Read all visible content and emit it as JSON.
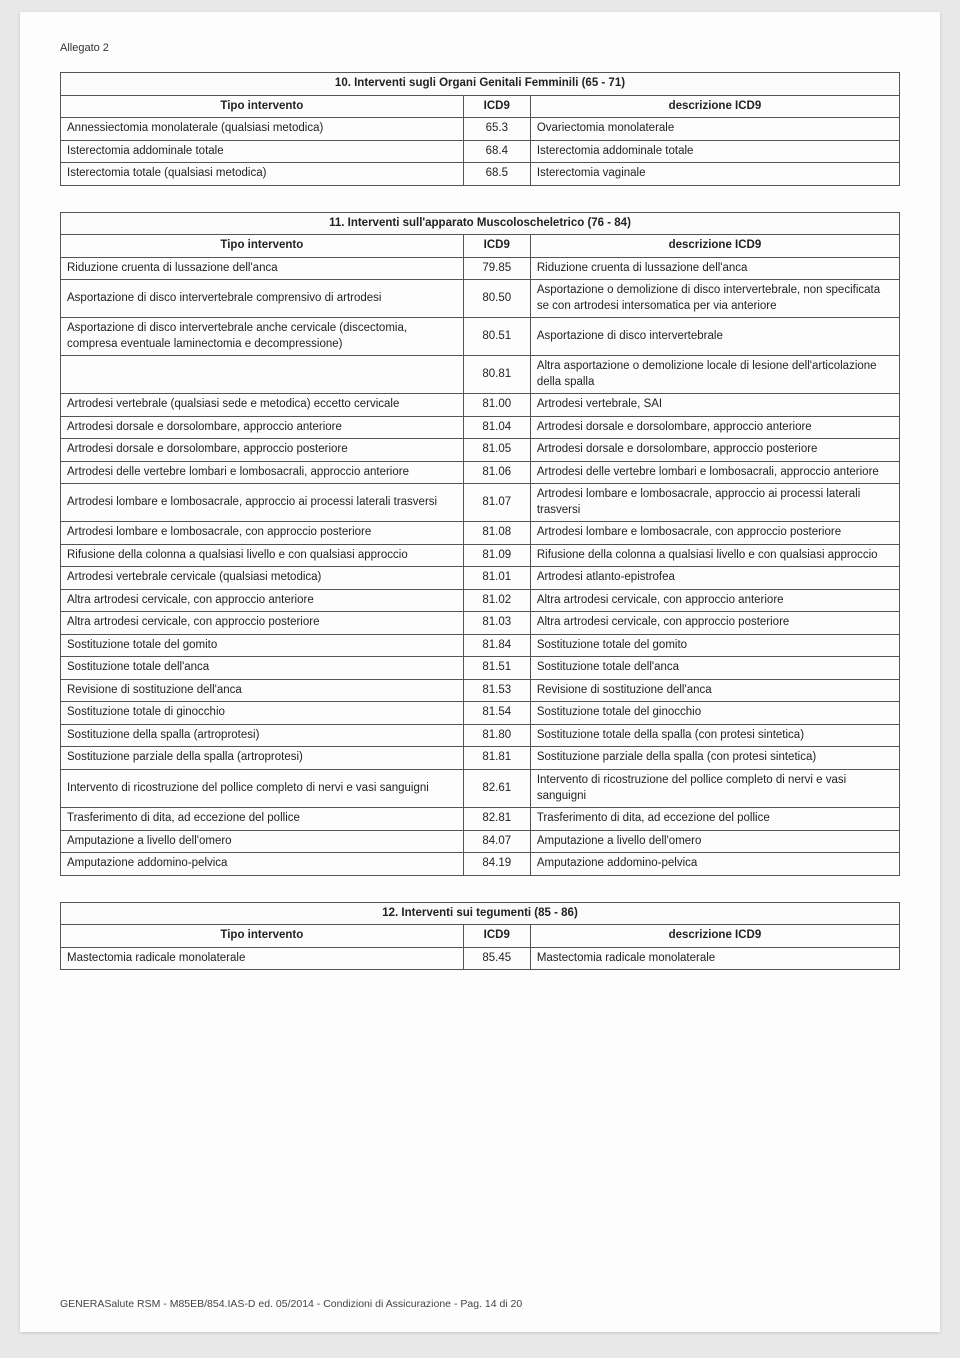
{
  "header": {
    "allegato": "Allegato 2"
  },
  "footer": {
    "text": "GENERASalute RSM - M85EB/854.IAS-D ed. 05/2014 - Condizioni di Assicurazione - Pag. 14 di 20"
  },
  "columns": {
    "tipo": "Tipo intervento",
    "icd9": "ICD9",
    "desc": "descrizione ICD9"
  },
  "tables": [
    {
      "title": "10. Interventi sugli  Organi Genitali Femminili (65 - 71)",
      "rows": [
        {
          "tipo": "Annessiectomia monolaterale (qualsiasi metodica)",
          "icd9": "65.3",
          "desc": "Ovariectomia monolaterale"
        },
        {
          "tipo": "Isterectomia addominale totale",
          "icd9": "68.4",
          "desc": "Isterectomia addominale totale"
        },
        {
          "tipo": "Isterectomia totale (qualsiasi metodica)",
          "icd9": "68.5",
          "desc": "Isterectomia vaginale"
        }
      ]
    },
    {
      "title": "11. Interventi sull'apparato Muscoloscheletrico (76 - 84)",
      "rows": [
        {
          "tipo": "Riduzione cruenta di lussazione dell'anca",
          "icd9": "79.85",
          "desc": "Riduzione cruenta di lussazione dell'anca"
        },
        {
          "tipo": "Asportazione di disco intervertebrale  comprensivo di artrodesi",
          "icd9": "80.50",
          "desc": "Asportazione o demolizione di disco intervertebrale, non specificata se con artrodesi intersomatica per via anteriore"
        },
        {
          "tipo": "Asportazione di disco intervertebrale anche cervicale (discectomia, compresa eventuale laminectomia e decompressione)",
          "icd9": "80.51",
          "desc": "Asportazione di disco intervertebrale"
        },
        {
          "tipo": "",
          "icd9": "80.81",
          "desc": "Altra asportazione o demolizione locale di lesione dell'articolazione della spalla"
        },
        {
          "tipo": "Artrodesi vertebrale (qualsiasi sede e metodica) eccetto cervicale",
          "icd9": "81.00",
          "desc": "Artrodesi vertebrale, SAI"
        },
        {
          "tipo": "Artrodesi dorsale e dorsolombare, approccio anteriore",
          "icd9": "81.04",
          "desc": "Artrodesi dorsale e dorsolombare, approccio anteriore"
        },
        {
          "tipo": "Artrodesi dorsale e dorsolombare, approccio posteriore",
          "icd9": "81.05",
          "desc": "Artrodesi dorsale e dorsolombare, approccio posteriore"
        },
        {
          "tipo": "Artrodesi delle vertebre lombari e lombosacrali, approccio anteriore",
          "icd9": "81.06",
          "desc": "Artrodesi delle vertebre lombari e lombosacrali, approccio anteriore"
        },
        {
          "tipo": "Artrodesi lombare e lombosacrale, approccio ai processi laterali trasversi",
          "icd9": "81.07",
          "desc": "Artrodesi lombare e lombosacrale, approccio ai processi laterali trasversi"
        },
        {
          "tipo": "Artrodesi lombare e lombosacrale, con approccio posteriore",
          "icd9": "81.08",
          "desc": "Artrodesi lombare e lombosacrale, con approccio posteriore"
        },
        {
          "tipo": "Rifusione della colonna a qualsiasi livello e con qualsiasi approccio",
          "icd9": "81.09",
          "desc": "Rifusione della colonna a qualsiasi livello e con qualsiasi approccio"
        },
        {
          "tipo": "Artrodesi vertebrale cervicale (qualsiasi metodica)",
          "icd9": "81.01",
          "desc": "Artrodesi atlanto-epistrofea"
        },
        {
          "tipo": "Altra artrodesi cervicale, con approccio anteriore",
          "icd9": "81.02",
          "desc": "Altra artrodesi cervicale, con approccio anteriore"
        },
        {
          "tipo": "Altra artrodesi cervicale, con approccio posteriore",
          "icd9": "81.03",
          "desc": "Altra artrodesi cervicale, con approccio posteriore"
        },
        {
          "tipo": "Sostituzione totale del gomito",
          "icd9": "81.84",
          "desc": "Sostituzione totale del gomito"
        },
        {
          "tipo": "Sostituzione totale dell'anca",
          "icd9": "81.51",
          "desc": "Sostituzione totale dell'anca"
        },
        {
          "tipo": "Revisione di sostituzione  dell'anca",
          "icd9": "81.53",
          "desc": "Revisione di sostituzione dell'anca"
        },
        {
          "tipo": "Sostituzione totale di ginocchio",
          "icd9": "81.54",
          "desc": "Sostituzione totale del ginocchio"
        },
        {
          "tipo": "Sostituzione  della spalla (artroprotesi)",
          "icd9": "81.80",
          "desc": "Sostituzione totale della spalla (con protesi sintetica)"
        },
        {
          "tipo": "Sostituzione  parziale  della spalla (artroprotesi)",
          "icd9": "81.81",
          "desc": "Sostituzione parziale della spalla (con protesi sintetica)"
        },
        {
          "tipo": "Intervento di ricostruzione del pollice completo di nervi e vasi sanguigni",
          "icd9": "82.61",
          "desc": "Intervento di ricostruzione del pollice completo di nervi e vasi sanguigni"
        },
        {
          "tipo": "Trasferimento di dita, ad eccezione del pollice",
          "icd9": "82.81",
          "desc": "Trasferimento di dita, ad eccezione del pollice"
        },
        {
          "tipo": "Amputazione a livello dell'omero",
          "icd9": "84.07",
          "desc": "Amputazione a livello dell'omero"
        },
        {
          "tipo": "Amputazione addomino-pelvica",
          "icd9": "84.19",
          "desc": "Amputazione addomino-pelvica"
        }
      ]
    },
    {
      "title": "12. Interventi sui tegumenti (85 - 86)",
      "rows": [
        {
          "tipo": "Mastectomia radicale monolaterale",
          "icd9": "85.45",
          "desc": "Mastectomia radicale monolaterale"
        }
      ]
    }
  ]
}
